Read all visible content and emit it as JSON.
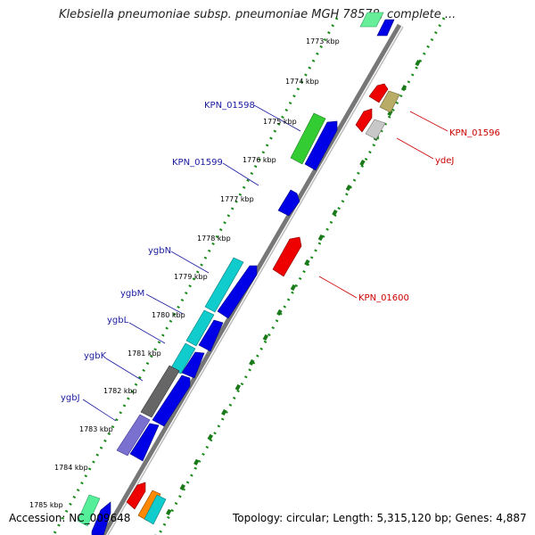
{
  "title": "Klebsiella pneumoniae subsp. pneumoniae MGH 78578, complete ...",
  "accession": "Accession: NC_009648",
  "topology": "Topology: circular; Length: 5,315,120 bp; Genes: 4,887",
  "ticks": [
    "1773 kbp",
    "1774 kbp",
    "1775 kbp",
    "1776 kbp",
    "1777 kbp",
    "1778 kbp",
    "1779 kbp",
    "1780 kbp",
    "1781 kbp",
    "1782 kbp",
    "1783 kbp",
    "1784 kbp",
    "1785 kbp"
  ],
  "gene_labels": {
    "left": [
      "KPN_01598",
      "KPN_01599",
      "ygbN",
      "ygbM",
      "ygbL",
      "ygbK",
      "ygbJ"
    ],
    "right": [
      "KPN_01596",
      "ydeJ",
      "KPN_01600"
    ]
  },
  "colors": {
    "forward": "#0000ee",
    "reverse": "#ee0000",
    "backbone": "#808080",
    "tick_dots": "#1a7f1a",
    "label_left": "#1a1aa0",
    "label_right": "#cc0000",
    "cog_green": "#33cc33",
    "cog_cyan": "#11cccc",
    "cog_grey": "#666666",
    "cog_lavender": "#7a70d0",
    "cog_olive": "#b0a860",
    "cog_silver": "#c8c8c8",
    "cog_orange": "#ff8800",
    "cog_mint": "#55ee99"
  }
}
